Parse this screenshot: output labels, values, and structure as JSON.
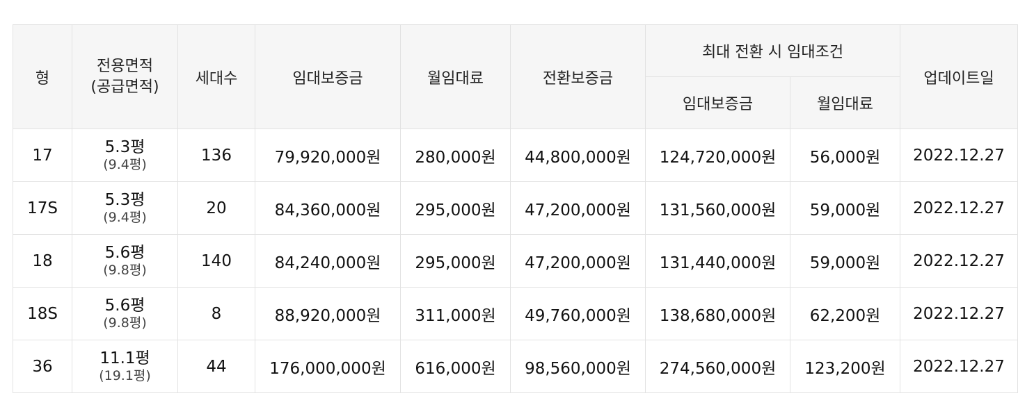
{
  "headers": {
    "type": "형",
    "area_line1": "전용면적",
    "area_line2": "(공급면적)",
    "households": "세대수",
    "deposit": "임대보증금",
    "monthly": "월임대료",
    "conversion_deposit": "전환보증금",
    "max_conversion": "최대 전환 시 임대조건",
    "max_deposit": "임대보증금",
    "max_monthly": "월임대료",
    "updated": "업데이트일"
  },
  "rows": [
    {
      "type": "17",
      "area": "5.3평",
      "supply": "(9.4평)",
      "households": "136",
      "deposit": "79,920,000원",
      "monthly": "280,000원",
      "conversion": "44,800,000원",
      "max_deposit": "124,720,000원",
      "max_monthly": "56,000원",
      "updated": "2022.12.27"
    },
    {
      "type": "17S",
      "area": "5.3평",
      "supply": "(9.4평)",
      "households": "20",
      "deposit": "84,360,000원",
      "monthly": "295,000원",
      "conversion": "47,200,000원",
      "max_deposit": "131,560,000원",
      "max_monthly": "59,000원",
      "updated": "2022.12.27"
    },
    {
      "type": "18",
      "area": "5.6평",
      "supply": "(9.8평)",
      "households": "140",
      "deposit": "84,240,000원",
      "monthly": "295,000원",
      "conversion": "47,200,000원",
      "max_deposit": "131,440,000원",
      "max_monthly": "59,000원",
      "updated": "2022.12.27"
    },
    {
      "type": "18S",
      "area": "5.6평",
      "supply": "(9.8평)",
      "households": "8",
      "deposit": "88,920,000원",
      "monthly": "311,000원",
      "conversion": "49,760,000원",
      "max_deposit": "138,680,000원",
      "max_monthly": "62,200원",
      "updated": "2022.12.27"
    },
    {
      "type": "36",
      "area": "11.1평",
      "supply": "(19.1평)",
      "households": "44",
      "deposit": "176,000,000원",
      "monthly": "616,000원",
      "conversion": "98,560,000원",
      "max_deposit": "274,560,000원",
      "max_monthly": "123,200원",
      "updated": "2022.12.27"
    }
  ]
}
